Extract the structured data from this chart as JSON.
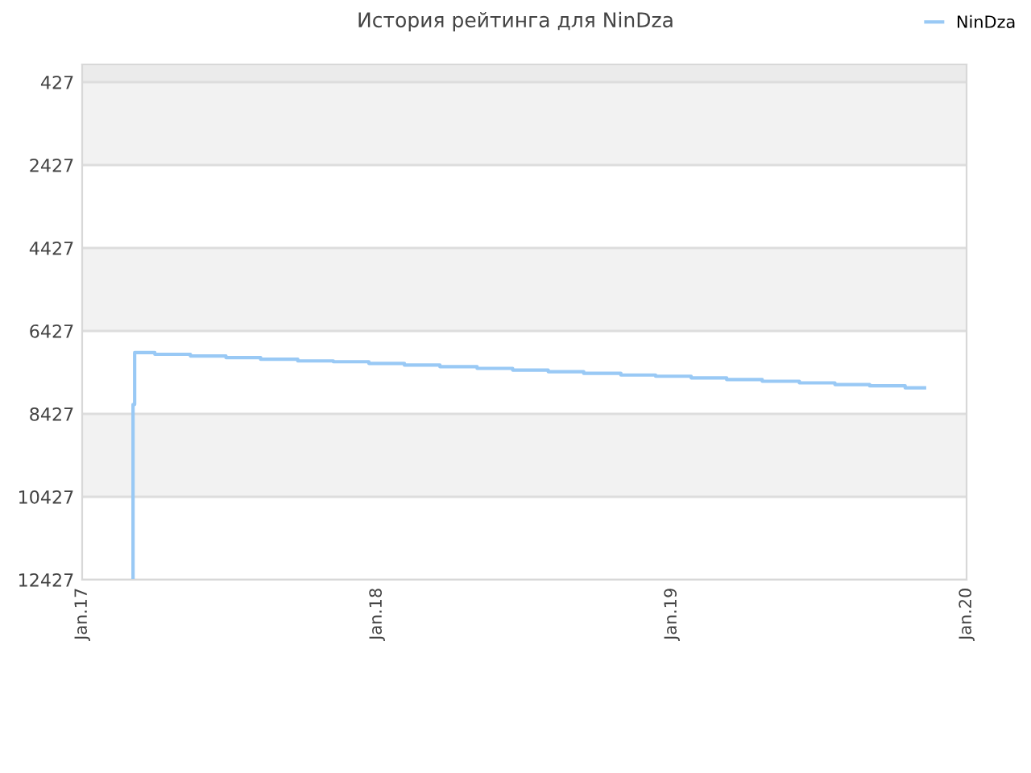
{
  "chart_data": {
    "type": "step",
    "title": "История рейтинга для NinDza",
    "x": [
      "2017-03-05",
      "2017-03-05",
      "2017-03-05",
      "2017-03-05",
      "2017-03-07",
      "2017-03-07",
      "2017-03-07",
      "2017-04-01",
      "2017-05-15",
      "2017-06-28",
      "2017-08-10",
      "2017-09-25",
      "2017-11-08",
      "2017-12-22",
      "2018-02-04",
      "2018-03-20",
      "2018-05-05",
      "2018-06-18",
      "2018-08-01",
      "2018-09-14",
      "2018-10-30",
      "2018-12-12",
      "2019-01-25",
      "2019-03-10",
      "2019-04-23",
      "2019-06-08",
      "2019-07-22",
      "2019-09-03",
      "2019-10-17",
      "2019-11-10"
    ],
    "series": [
      {
        "name": "NinDza",
        "color": "#99c9f5",
        "values": [
          12427,
          9630,
          8580,
          8200,
          7770,
          7300,
          6950,
          6990,
          7030,
          7070,
          7110,
          7150,
          7170,
          7210,
          7250,
          7290,
          7330,
          7370,
          7410,
          7450,
          7490,
          7520,
          7560,
          7600,
          7640,
          7680,
          7720,
          7750,
          7800,
          7800
        ]
      }
    ],
    "xlim": [
      "2017-01-01",
      "2020-01-01"
    ],
    "xticks": [
      {
        "value": "2017-01-01",
        "label": "Jan.17"
      },
      {
        "value": "2018-01-01",
        "label": "Jan.18"
      },
      {
        "value": "2019-01-01",
        "label": "Jan.19"
      },
      {
        "value": "2020-01-01",
        "label": "Jan.20"
      }
    ],
    "ylim": [
      12427,
      0
    ],
    "yticks": [
      427,
      2427,
      4427,
      6427,
      8427,
      10427,
      12427
    ],
    "bands": [
      {
        "axis": "y",
        "from": 0,
        "to": 427,
        "color": "#ebebeb"
      },
      {
        "axis": "y",
        "from": 427,
        "to": 2427,
        "color": "#f2f2f2"
      },
      {
        "axis": "y",
        "from": 4427,
        "to": 6427,
        "color": "#f2f2f2"
      },
      {
        "axis": "y",
        "from": 8427,
        "to": 10427,
        "color": "#f2f2f2"
      }
    ],
    "grid": "y",
    "legend": "top right"
  }
}
